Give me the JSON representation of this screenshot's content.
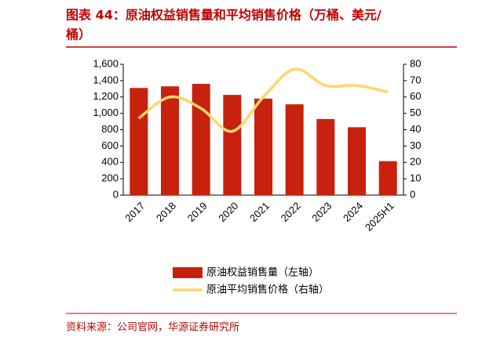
{
  "chart_data": {
    "type": "bar",
    "title_lines": [
      "图表 44：原油权益销售量和平均销售价格（万桶、美元/",
      "桶）"
    ],
    "categories": [
      "2017",
      "2018",
      "2019",
      "2020",
      "2021",
      "2022",
      "2023",
      "2024",
      "2025H1"
    ],
    "series": [
      {
        "name": "原油权益销售量（左轴）",
        "type": "bar",
        "color": "#c8220e",
        "values": [
          1310,
          1330,
          1360,
          1225,
          1180,
          1110,
          930,
          830,
          415
        ]
      },
      {
        "name": "原油平均销售价格（右轴）",
        "type": "line",
        "axis": "y2",
        "color": "#fcd76c",
        "values": [
          47,
          60,
          53,
          39,
          60,
          77,
          67,
          67,
          63
        ]
      }
    ],
    "ylim": [
      0,
      1600
    ],
    "yticks": [
      0,
      200,
      400,
      600,
      800,
      {
        "value": 1000,
        "label": "1,000"
      },
      {
        "value": 1200,
        "label": "1,200"
      },
      {
        "value": 1400,
        "label": "1,400"
      },
      {
        "value": 1600,
        "label": "1,600"
      }
    ],
    "y2lim": [
      0,
      80
    ],
    "y2ticks": [
      0,
      10,
      20,
      30,
      40,
      50,
      60,
      70,
      80
    ],
    "source": "资料来源：公司官网，华源证券研究所"
  }
}
